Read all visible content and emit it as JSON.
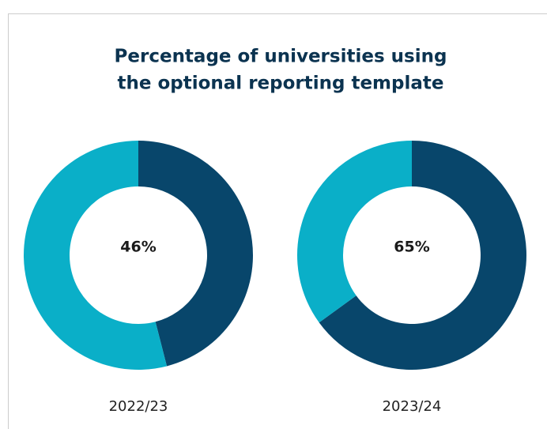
{
  "title_lines": [
    "Percentage of universities using",
    "the optional reporting template"
  ],
  "chart_data": [
    {
      "type": "pie",
      "label": "2022/23",
      "values": [
        46,
        54
      ],
      "value_labels": [
        "46%",
        null
      ],
      "colors": [
        "#08466b",
        "#0aafc8"
      ],
      "donut": true
    },
    {
      "type": "pie",
      "label": "2023/24",
      "values": [
        65,
        35
      ],
      "value_labels": [
        "65%",
        null
      ],
      "colors": [
        "#08466b",
        "#0aafc8"
      ],
      "donut": true
    }
  ]
}
